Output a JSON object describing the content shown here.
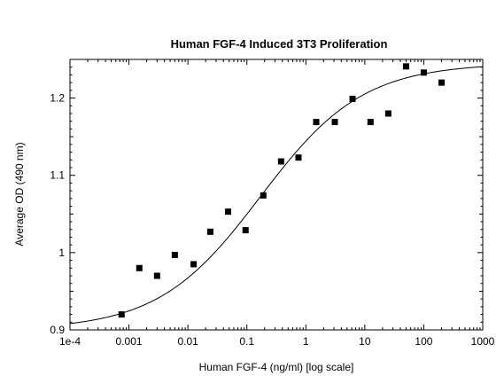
{
  "chart_data": {
    "type": "scatter",
    "title": "Human FGF-4 Induced 3T3 Proliferation",
    "xlabel": "Human FGF-4 (ng/ml) [log scale]",
    "ylabel": "Average OD (490 nm)",
    "x_scale": "log",
    "xlim": [
      0.0001,
      1000
    ],
    "ylim": [
      0.9,
      1.25
    ],
    "x_ticks": [
      {
        "value": 0.0001,
        "label": "1e-4"
      },
      {
        "value": 0.001,
        "label": "0.001"
      },
      {
        "value": 0.01,
        "label": "0.01"
      },
      {
        "value": 0.1,
        "label": "0.1"
      },
      {
        "value": 1,
        "label": "1"
      },
      {
        "value": 10,
        "label": "10"
      },
      {
        "value": 100,
        "label": "100"
      },
      {
        "value": 1000,
        "label": "1000"
      }
    ],
    "y_ticks": [
      {
        "value": 0.9,
        "label": "0.9"
      },
      {
        "value": 1.0,
        "label": "1"
      },
      {
        "value": 1.1,
        "label": "1.1"
      },
      {
        "value": 1.2,
        "label": "1.2"
      }
    ],
    "grid": false,
    "series": [
      {
        "marker": "square",
        "x": [
          0.00075,
          0.0015,
          0.003,
          0.006,
          0.0125,
          0.024,
          0.048,
          0.095,
          0.19,
          0.38,
          0.75,
          1.5,
          3.1,
          6.2,
          12.5,
          25,
          50,
          100,
          200
        ],
        "y": [
          0.92,
          0.98,
          0.97,
          0.997,
          0.985,
          1.027,
          1.053,
          1.029,
          1.074,
          1.118,
          1.123,
          1.169,
          1.169,
          1.199,
          1.169,
          1.18,
          1.241,
          1.233,
          1.22
        ]
      }
    ],
    "fit_curve": {
      "model": "4PL",
      "bottom": 0.9,
      "top": 1.245,
      "ec50": 0.17,
      "hill": 0.5
    }
  }
}
